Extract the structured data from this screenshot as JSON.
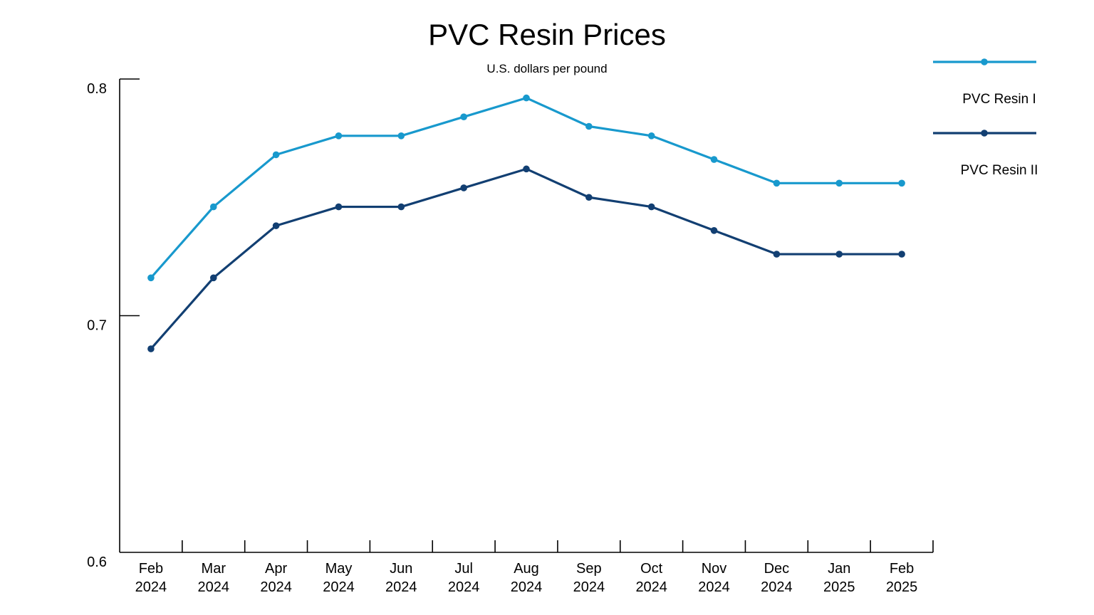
{
  "chart_data": {
    "type": "line",
    "title": "PVC Resin Prices",
    "subtitle": "U.S. dollars per pound",
    "xlabel": "",
    "ylabel": "",
    "categories": [
      [
        "Feb",
        "2024"
      ],
      [
        "Mar",
        "2024"
      ],
      [
        "Apr",
        "2024"
      ],
      [
        "May",
        "2024"
      ],
      [
        "Jun",
        "2024"
      ],
      [
        "Jul",
        "2024"
      ],
      [
        "Aug",
        "2024"
      ],
      [
        "Sep",
        "2024"
      ],
      [
        "Oct",
        "2024"
      ],
      [
        "Nov",
        "2024"
      ],
      [
        "Dec",
        "2024"
      ],
      [
        "Jan",
        "2025"
      ],
      [
        "Feb",
        "2025"
      ]
    ],
    "ylim": [
      0.6,
      0.8
    ],
    "yticks": [
      "0.6",
      "0.7",
      "0.8"
    ],
    "grid": false,
    "legend": "right",
    "series": [
      {
        "name": "PVC Resin I",
        "color": "#1899cd",
        "values": [
          0.716,
          0.746,
          0.768,
          0.776,
          0.776,
          0.784,
          0.792,
          0.78,
          0.776,
          0.766,
          0.756,
          0.756,
          0.756
        ]
      },
      {
        "name": "PVC Resin II",
        "color": "#123f72",
        "values": [
          0.686,
          0.716,
          0.738,
          0.746,
          0.746,
          0.754,
          0.762,
          0.75,
          0.746,
          0.736,
          0.726,
          0.726,
          0.726
        ]
      }
    ]
  }
}
